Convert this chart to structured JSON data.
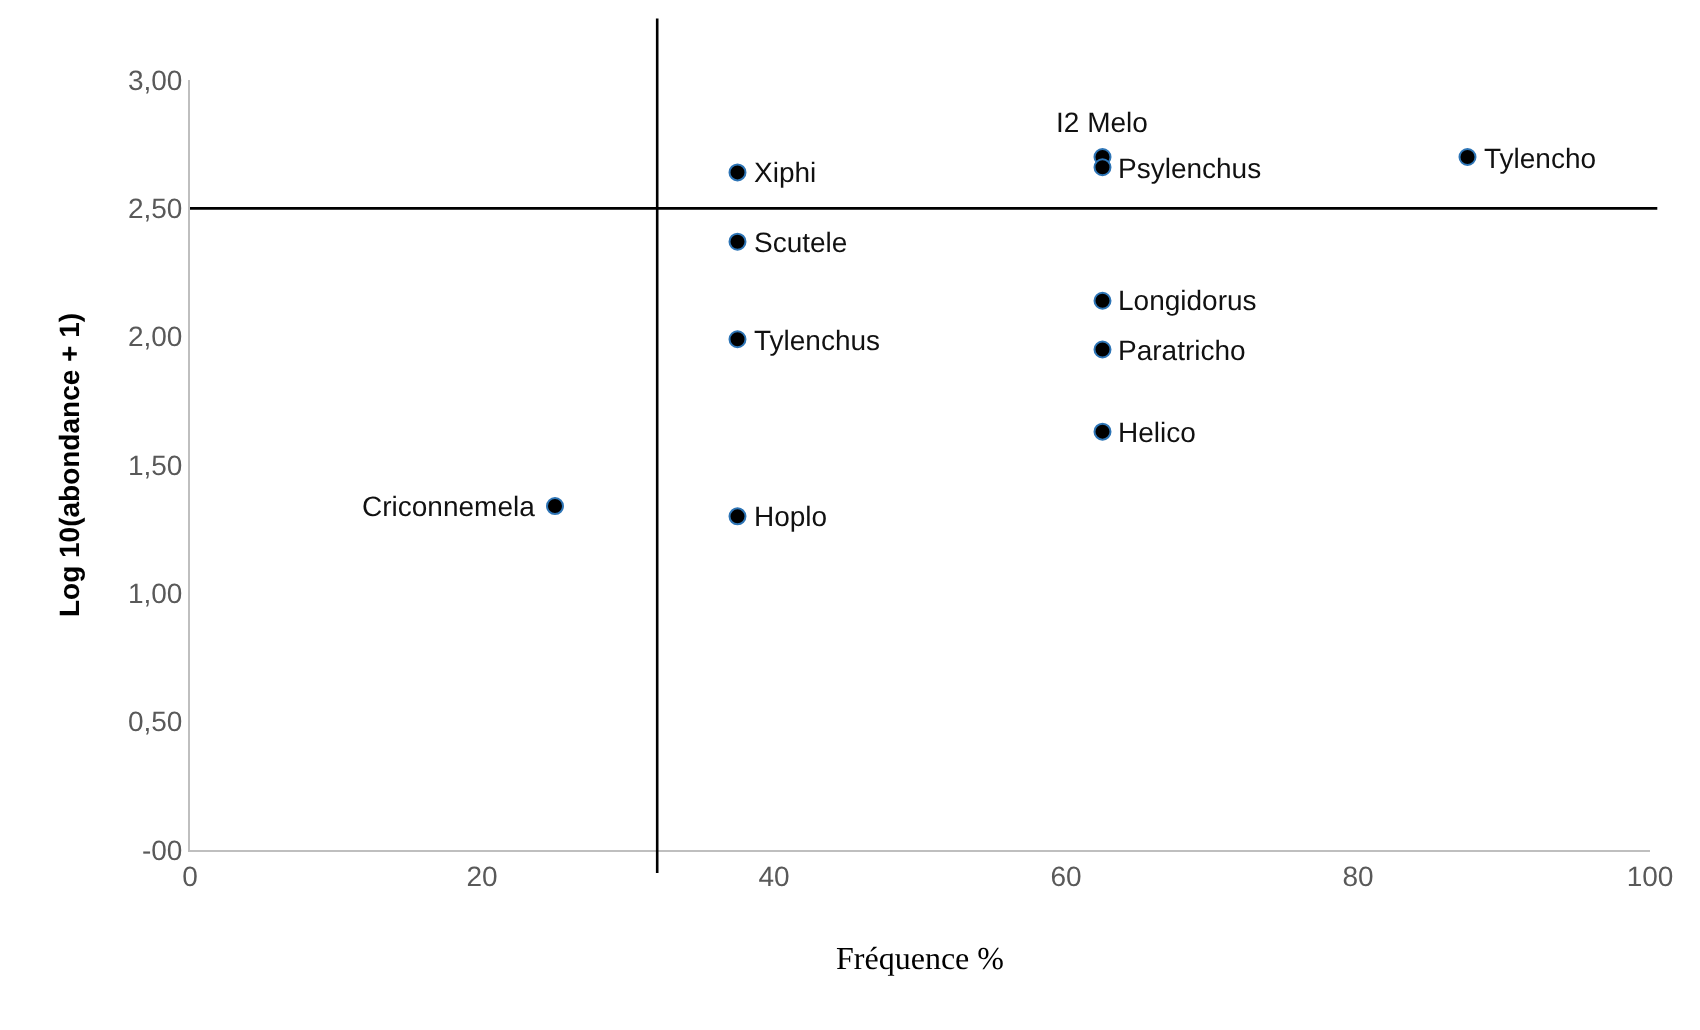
{
  "chart_data": {
    "type": "scatter",
    "xlabel": "Fréquence %",
    "ylabel": "Log 10(abondance + 1)",
    "x": [
      37.5,
      62.5,
      62.5,
      87.5,
      37.5,
      62.5,
      37.5,
      62.5,
      62.5,
      25,
      37.5
    ],
    "series": [
      {
        "color": "#000000",
        "values": [
          2.64,
          2.7,
          2.66,
          2.7,
          2.37,
          2.14,
          1.99,
          1.95,
          1.63,
          1.34,
          1.3
        ]
      }
    ],
    "annotations": [
      {
        "text": "Xiphi",
        "x": 37.5,
        "y": 2.64
      },
      {
        "text": "I2 Melo",
        "x": 62.5,
        "y": 2.7
      },
      {
        "text": "Psylenchus",
        "x": 62.5,
        "y": 2.66
      },
      {
        "text": "Tylencho",
        "x": 87.5,
        "y": 2.7
      },
      {
        "text": "Scutele",
        "x": 37.5,
        "y": 2.37
      },
      {
        "text": "Longidorus",
        "x": 62.5,
        "y": 2.14
      },
      {
        "text": "Tylenchus",
        "x": 37.5,
        "y": 1.99
      },
      {
        "text": "Paratricho",
        "x": 62.5,
        "y": 1.95
      },
      {
        "text": "Helico",
        "x": 62.5,
        "y": 1.63
      },
      {
        "text": "Criconnemela",
        "x": 25,
        "y": 1.34
      },
      {
        "text": "Hoplo",
        "x": 37.5,
        "y": 1.3
      }
    ],
    "ref_lines": [
      {
        "axis": "x",
        "value": 32
      },
      {
        "axis": "y",
        "value": 2.5
      }
    ],
    "xlim": [
      0,
      100
    ],
    "xticks": [
      0,
      20,
      40,
      60,
      80,
      100
    ],
    "ylim": [
      0,
      3
    ],
    "yticks": [
      {
        "value": 0,
        "label": "-00"
      },
      {
        "value": 0.5,
        "label": "0,50"
      },
      {
        "value": 1,
        "label": "1,00"
      },
      {
        "value": 1.5,
        "label": "1,50"
      },
      {
        "value": 2,
        "label": "2,00"
      },
      {
        "value": 2.5,
        "label": "2,50"
      },
      {
        "value": 3,
        "label": "3,00"
      }
    ],
    "marker": "circle"
  }
}
